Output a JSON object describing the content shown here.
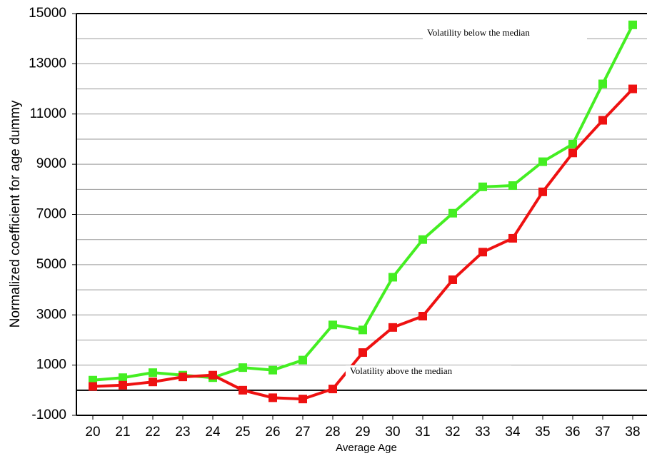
{
  "chart_data": {
    "type": "line",
    "x_label": "Average Age",
    "y_label": "Normalized coefficient for age dummy",
    "categories": [
      "20",
      "21",
      "22",
      "23",
      "24",
      "25",
      "26",
      "27",
      "28",
      "29",
      "30",
      "31",
      "32",
      "33",
      "34",
      "35",
      "36",
      "37",
      "38"
    ],
    "series": [
      {
        "name": "Volatility below the median",
        "color": "#44ee22",
        "values": [
          400,
          500,
          700,
          600,
          500,
          900,
          800,
          1200,
          2600,
          2400,
          4500,
          6000,
          7050,
          8100,
          8150,
          9100,
          9800,
          12200,
          14550
        ]
      },
      {
        "name": "Volatility above the median",
        "color": "#ee1111",
        "values": [
          150,
          200,
          330,
          530,
          600,
          0,
          -300,
          -350,
          50,
          1500,
          2500,
          2950,
          4400,
          5500,
          6050,
          7900,
          9450,
          10750,
          12000
        ]
      }
    ],
    "ylim": [
      -1000,
      15000
    ],
    "yticks": [
      -1000,
      1000,
      3000,
      5000,
      7000,
      9000,
      11000,
      13000,
      15000
    ],
    "minor_yticks": [
      0,
      2000,
      4000,
      6000,
      8000,
      10000,
      12000,
      14000
    ],
    "grid": true
  }
}
